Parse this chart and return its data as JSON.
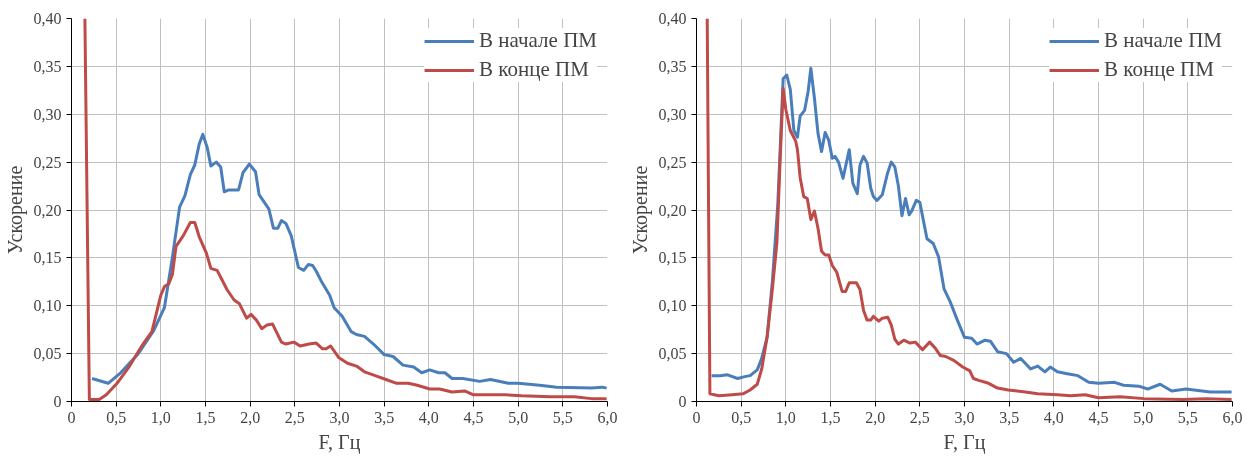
{
  "chart_data": [
    {
      "type": "line",
      "xlabel": "F, Гц",
      "ylabel": "Ускорение",
      "xlim": [
        0,
        6
      ],
      "ylim": [
        0,
        0.4
      ],
      "xticks": [
        {
          "value": 0,
          "label": "0"
        },
        {
          "value": 0.5,
          "label": "0,5"
        },
        {
          "value": 1,
          "label": "1,0"
        },
        {
          "value": 1.5,
          "label": "1,5"
        },
        {
          "value": 2,
          "label": "2,0"
        },
        {
          "value": 2.5,
          "label": "2,5"
        },
        {
          "value": 3,
          "label": "3,0"
        },
        {
          "value": 3.5,
          "label": "3,5"
        },
        {
          "value": 4,
          "label": "4,0"
        },
        {
          "value": 4.5,
          "label": "4,5"
        },
        {
          "value": 5,
          "label": "5,0"
        },
        {
          "value": 5.5,
          "label": "5,5"
        },
        {
          "value": 6,
          "label": "6,0"
        }
      ],
      "yticks": [
        {
          "value": 0,
          "label": "0"
        },
        {
          "value": 0.05,
          "label": "0,05"
        },
        {
          "value": 0.1,
          "label": "0,10"
        },
        {
          "value": 0.15,
          "label": "0,15"
        },
        {
          "value": 0.2,
          "label": "0,20"
        },
        {
          "value": 0.25,
          "label": "0,25"
        },
        {
          "value": 0.3,
          "label": "0,30"
        },
        {
          "value": 0.35,
          "label": "0,35"
        },
        {
          "value": 0.4,
          "label": "0,40"
        }
      ],
      "grid": true,
      "legend": "top right",
      "marker": "none",
      "line_style": "solid",
      "series": [
        {
          "name": "В начале ПМ",
          "color": "#4a7ebb",
          "x": [
            0.23,
            0.41,
            0.55,
            0.74,
            0.92,
            1.04,
            1.13,
            1.21,
            1.27,
            1.33,
            1.38,
            1.43,
            1.47,
            1.52,
            1.56,
            1.62,
            1.67,
            1.71,
            1.76,
            1.87,
            1.92,
            1.99,
            2.06,
            2.1,
            2.21,
            2.26,
            2.31,
            2.35,
            2.4,
            2.46,
            2.54,
            2.6,
            2.65,
            2.7,
            2.74,
            2.8,
            2.89,
            2.94,
            3.03,
            3.13,
            3.19,
            3.28,
            3.38,
            3.5,
            3.6,
            3.71,
            3.83,
            3.92,
            4.01,
            4.11,
            4.18,
            4.26,
            4.38,
            4.57,
            4.69,
            4.89,
            5.0,
            5.24,
            5.43,
            5.82,
            5.94,
            5.99
          ],
          "values": [
            0.024,
            0.019,
            0.03,
            0.049,
            0.074,
            0.098,
            0.151,
            0.203,
            0.215,
            0.237,
            0.247,
            0.269,
            0.279,
            0.265,
            0.246,
            0.25,
            0.245,
            0.219,
            0.221,
            0.221,
            0.239,
            0.248,
            0.24,
            0.216,
            0.201,
            0.181,
            0.181,
            0.189,
            0.186,
            0.173,
            0.14,
            0.137,
            0.143,
            0.142,
            0.136,
            0.125,
            0.111,
            0.098,
            0.089,
            0.073,
            0.07,
            0.068,
            0.06,
            0.049,
            0.047,
            0.038,
            0.036,
            0.03,
            0.033,
            0.03,
            0.03,
            0.024,
            0.024,
            0.021,
            0.023,
            0.019,
            0.019,
            0.017,
            0.015,
            0.014,
            0.015,
            0.014
          ]
        },
        {
          "name": "В конце ПМ",
          "color": "#be4b48",
          "x": [
            0.15,
            0.2,
            0.31,
            0.39,
            0.51,
            0.65,
            0.74,
            0.8,
            0.9,
            1.0,
            1.04,
            1.09,
            1.13,
            1.17,
            1.25,
            1.33,
            1.38,
            1.43,
            1.51,
            1.56,
            1.63,
            1.68,
            1.74,
            1.82,
            1.88,
            1.96,
            2.01,
            2.07,
            2.13,
            2.19,
            2.25,
            2.35,
            2.4,
            2.49,
            2.56,
            2.66,
            2.74,
            2.81,
            2.85,
            2.9,
            2.99,
            3.09,
            3.19,
            3.28,
            3.4,
            3.52,
            3.64,
            3.77,
            3.87,
            4.01,
            4.12,
            4.26,
            4.4,
            4.5,
            4.85,
            5.04,
            5.36,
            5.63,
            5.82,
            5.99
          ],
          "values": [
            0.4,
            0.002,
            0.002,
            0.007,
            0.019,
            0.037,
            0.051,
            0.06,
            0.073,
            0.111,
            0.12,
            0.123,
            0.133,
            0.162,
            0.173,
            0.187,
            0.187,
            0.172,
            0.155,
            0.139,
            0.137,
            0.128,
            0.117,
            0.106,
            0.102,
            0.087,
            0.091,
            0.085,
            0.076,
            0.08,
            0.081,
            0.062,
            0.06,
            0.062,
            0.058,
            0.06,
            0.061,
            0.055,
            0.055,
            0.058,
            0.046,
            0.04,
            0.037,
            0.031,
            0.027,
            0.023,
            0.019,
            0.019,
            0.017,
            0.013,
            0.013,
            0.01,
            0.011,
            0.007,
            0.007,
            0.006,
            0.005,
            0.005,
            0.003,
            0.003
          ]
        }
      ]
    },
    {
      "type": "line",
      "xlabel": "F, Гц",
      "ylabel": "Ускорение",
      "xlim": [
        0,
        6
      ],
      "ylim": [
        0,
        0.4
      ],
      "xticks": [
        {
          "value": 0,
          "label": "0"
        },
        {
          "value": 0.5,
          "label": "0,5"
        },
        {
          "value": 1,
          "label": "1,0"
        },
        {
          "value": 1.5,
          "label": "1,5"
        },
        {
          "value": 2,
          "label": "2,0"
        },
        {
          "value": 2.5,
          "label": "2,5"
        },
        {
          "value": 3,
          "label": "3,0"
        },
        {
          "value": 3.5,
          "label": "3,5"
        },
        {
          "value": 4,
          "label": "4,0"
        },
        {
          "value": 4.5,
          "label": "4,5"
        },
        {
          "value": 5,
          "label": "5,0"
        },
        {
          "value": 5.5,
          "label": "5,5"
        },
        {
          "value": 6,
          "label": "6,0"
        }
      ],
      "yticks": [
        {
          "value": 0,
          "label": "0"
        },
        {
          "value": 0.05,
          "label": "0,05"
        },
        {
          "value": 0.1,
          "label": "0,10"
        },
        {
          "value": 0.15,
          "label": "0,15"
        },
        {
          "value": 0.2,
          "label": "0,20"
        },
        {
          "value": 0.25,
          "label": "0,25"
        },
        {
          "value": 0.3,
          "label": "0,30"
        },
        {
          "value": 0.35,
          "label": "0,35"
        },
        {
          "value": 0.4,
          "label": "0,40"
        }
      ],
      "grid": true,
      "legend": "top right",
      "marker": "none",
      "line_style": "solid",
      "series": [
        {
          "name": "В начале ПМ",
          "color": "#4a7ebb",
          "x": [
            0.17,
            0.27,
            0.34,
            0.46,
            0.54,
            0.6,
            0.68,
            0.73,
            0.79,
            0.85,
            0.91,
            0.97,
            1.01,
            1.05,
            1.09,
            1.13,
            1.16,
            1.21,
            1.25,
            1.28,
            1.32,
            1.36,
            1.4,
            1.44,
            1.48,
            1.52,
            1.55,
            1.59,
            1.64,
            1.71,
            1.75,
            1.8,
            1.83,
            1.87,
            1.91,
            1.95,
            1.98,
            2.02,
            2.08,
            2.14,
            2.18,
            2.22,
            2.26,
            2.3,
            2.34,
            2.38,
            2.41,
            2.46,
            2.5,
            2.58,
            2.65,
            2.71,
            2.77,
            2.84,
            2.92,
            3.0,
            3.08,
            3.14,
            3.23,
            3.29,
            3.37,
            3.47,
            3.55,
            3.63,
            3.74,
            3.82,
            3.9,
            3.96,
            4.04,
            4.15,
            4.27,
            4.39,
            4.5,
            4.68,
            4.78,
            4.95,
            5.05,
            5.19,
            5.32,
            5.48,
            5.75,
            5.99
          ],
          "values": [
            0.027,
            0.027,
            0.028,
            0.024,
            0.026,
            0.027,
            0.033,
            0.045,
            0.067,
            0.126,
            0.206,
            0.337,
            0.341,
            0.326,
            0.283,
            0.276,
            0.298,
            0.304,
            0.324,
            0.348,
            0.317,
            0.28,
            0.261,
            0.281,
            0.273,
            0.254,
            0.256,
            0.25,
            0.233,
            0.263,
            0.228,
            0.217,
            0.247,
            0.256,
            0.249,
            0.223,
            0.214,
            0.21,
            0.216,
            0.239,
            0.25,
            0.245,
            0.225,
            0.194,
            0.212,
            0.195,
            0.199,
            0.21,
            0.208,
            0.17,
            0.165,
            0.151,
            0.118,
            0.104,
            0.085,
            0.067,
            0.066,
            0.06,
            0.064,
            0.063,
            0.052,
            0.05,
            0.041,
            0.045,
            0.034,
            0.037,
            0.031,
            0.036,
            0.031,
            0.029,
            0.027,
            0.02,
            0.019,
            0.02,
            0.017,
            0.016,
            0.013,
            0.018,
            0.011,
            0.013,
            0.01,
            0.01
          ]
        },
        {
          "name": "В конце ПМ",
          "color": "#be4b48",
          "x": [
            0.12,
            0.15,
            0.25,
            0.4,
            0.52,
            0.6,
            0.68,
            0.73,
            0.79,
            0.85,
            0.9,
            0.94,
            0.97,
            1.0,
            1.05,
            1.11,
            1.13,
            1.16,
            1.2,
            1.24,
            1.28,
            1.32,
            1.36,
            1.4,
            1.44,
            1.48,
            1.52,
            1.57,
            1.63,
            1.67,
            1.71,
            1.79,
            1.83,
            1.87,
            1.91,
            1.95,
            1.98,
            2.04,
            2.08,
            2.14,
            2.18,
            2.22,
            2.26,
            2.32,
            2.39,
            2.45,
            2.53,
            2.61,
            2.67,
            2.73,
            2.79,
            2.88,
            2.98,
            3.06,
            3.1,
            3.16,
            3.27,
            3.37,
            3.49,
            3.59,
            3.68,
            3.82,
            4.04,
            4.19,
            4.35,
            4.5,
            4.74,
            5.01,
            5.44,
            5.71,
            5.99
          ],
          "values": [
            0.4,
            0.008,
            0.006,
            0.007,
            0.008,
            0.012,
            0.018,
            0.034,
            0.067,
            0.118,
            0.166,
            0.261,
            0.327,
            0.305,
            0.283,
            0.272,
            0.263,
            0.234,
            0.214,
            0.212,
            0.19,
            0.199,
            0.181,
            0.157,
            0.153,
            0.153,
            0.142,
            0.135,
            0.115,
            0.115,
            0.124,
            0.124,
            0.117,
            0.095,
            0.085,
            0.085,
            0.089,
            0.084,
            0.087,
            0.088,
            0.08,
            0.065,
            0.06,
            0.064,
            0.061,
            0.062,
            0.054,
            0.062,
            0.056,
            0.048,
            0.047,
            0.043,
            0.036,
            0.032,
            0.024,
            0.022,
            0.019,
            0.014,
            0.012,
            0.011,
            0.01,
            0.008,
            0.007,
            0.006,
            0.007,
            0.004,
            0.005,
            0.003,
            0.002,
            0.003,
            0.002
          ]
        }
      ]
    }
  ]
}
